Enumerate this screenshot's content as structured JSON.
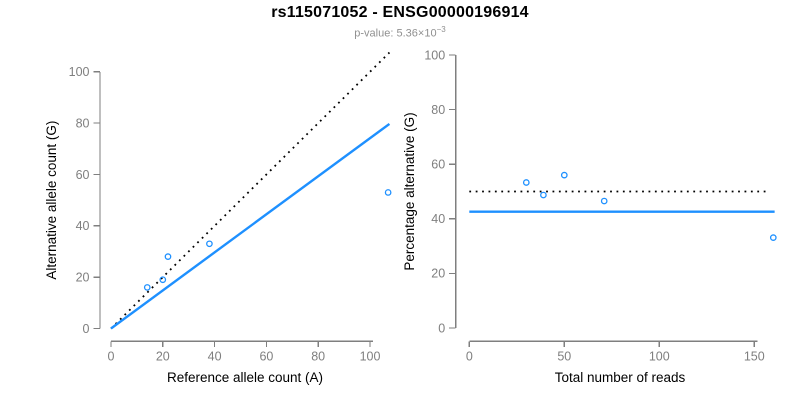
{
  "title": "rs115071052 - ENSG00000196914",
  "subtitle": {
    "label": "p-value: ",
    "mantissa": "5.36",
    "times": "×10",
    "exponent": "−3"
  },
  "colors": {
    "fit_blue": "#1E90FF",
    "dotted_black": "#000000",
    "axis_gray": "#7f7f7f",
    "tick_label_gray": "#7f7f7f",
    "axis_title_black": "#000000",
    "subtitle_gray": "#909090",
    "background": "#ffffff"
  },
  "chart_data": [
    {
      "type": "scatter",
      "title": "",
      "xlabel": "Reference allele count (A)",
      "ylabel": "Alternative allele count (G)",
      "xlim": [
        0,
        107.5
      ],
      "ylim": [
        0,
        107.5
      ],
      "xticks": [
        0,
        20,
        40,
        60,
        80,
        100
      ],
      "yticks": [
        0,
        20,
        40,
        60,
        80,
        100
      ],
      "grid": false,
      "points": [
        [
          14,
          16
        ],
        [
          20,
          19
        ],
        [
          22,
          28
        ],
        [
          38,
          33
        ],
        [
          107,
          53
        ]
      ],
      "lines": [
        {
          "name": "identity-line",
          "style": "dotted",
          "color": "#000000",
          "from": [
            0,
            0
          ],
          "to": [
            107.5,
            107.5
          ]
        },
        {
          "name": "fit-line",
          "style": "solid",
          "color": "#1E90FF",
          "from": [
            0,
            0
          ],
          "to": [
            107.5,
            79.7
          ]
        }
      ]
    },
    {
      "type": "scatter",
      "title": "",
      "xlabel": "Total number of reads",
      "ylabel": "Percentage alternative (G)",
      "xlim": [
        0,
        161
      ],
      "ylim": [
        0,
        100
      ],
      "xticks": [
        0,
        50,
        100,
        150
      ],
      "yticks": [
        0,
        20,
        40,
        60,
        80,
        100
      ],
      "grid": false,
      "points": [
        [
          30,
          53.3
        ],
        [
          39,
          48.7
        ],
        [
          50,
          56
        ],
        [
          71,
          46.5
        ],
        [
          160,
          33.1
        ]
      ],
      "lines": [
        {
          "name": "null-line",
          "style": "dotted",
          "color": "#000000",
          "from": [
            0,
            50
          ],
          "to": [
            157,
            50
          ]
        },
        {
          "name": "fit-line",
          "style": "solid",
          "color": "#1E90FF",
          "from": [
            0,
            42.6
          ],
          "to": [
            160.7,
            42.6
          ]
        }
      ]
    }
  ]
}
